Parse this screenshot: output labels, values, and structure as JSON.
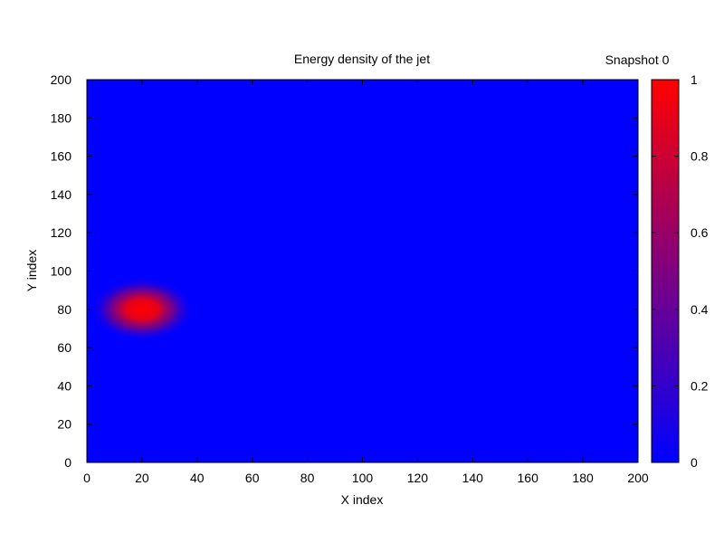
{
  "chart_data": {
    "type": "heatmap",
    "title": "Energy density of the jet",
    "annotation": "Snapshot 0",
    "xlabel": "X index",
    "ylabel": "Y index",
    "xlim": [
      0,
      200
    ],
    "ylim": [
      0,
      200
    ],
    "x_ticks": [
      "0",
      "20",
      "40",
      "60",
      "80",
      "100",
      "120",
      "140",
      "160",
      "180",
      "200"
    ],
    "y_ticks": [
      "0",
      "20",
      "40",
      "60",
      "80",
      "100",
      "120",
      "140",
      "160",
      "180",
      "200"
    ],
    "colorbar": {
      "range": [
        0,
        1
      ],
      "ticks": [
        "0",
        "0.2",
        "0.4",
        "0.6",
        "0.8",
        "1"
      ],
      "low_color": "#0000ff",
      "high_color": "#ff0000"
    },
    "field": {
      "background_value": 0,
      "peak_value": 1,
      "peak_center": [
        20,
        80
      ],
      "spread_x": 6,
      "spread_y": 5
    },
    "grid": false
  }
}
